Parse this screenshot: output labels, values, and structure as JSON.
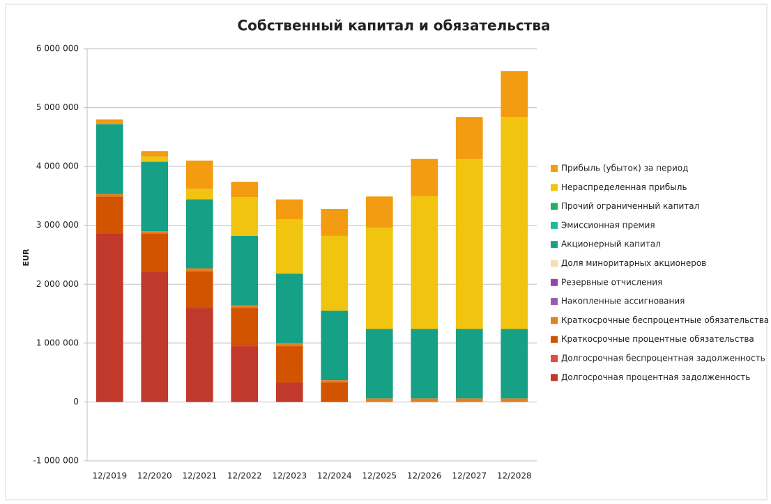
{
  "chart_data": {
    "type": "stacked-bar",
    "title": "Собственный капитал и обязательства",
    "y_label": "EUR",
    "categories": [
      "12/2019",
      "12/2020",
      "12/2021",
      "12/2022",
      "12/2023",
      "12/2024",
      "12/2025",
      "12/2026",
      "12/2027",
      "12/2028"
    ],
    "ylim": [
      -1000000,
      6000000
    ],
    "yticks": [
      {
        "value": -1000000,
        "label": "-1 000 000"
      },
      {
        "value": 0,
        "label": "0"
      },
      {
        "value": 1000000,
        "label": "1 000 000"
      },
      {
        "value": 2000000,
        "label": "2 000 000"
      },
      {
        "value": 3000000,
        "label": "3 000 000"
      },
      {
        "value": 4000000,
        "label": "4 000 000"
      },
      {
        "value": 5000000,
        "label": "5 000 000"
      },
      {
        "value": 6000000,
        "label": "6 000 000"
      }
    ],
    "grid": true,
    "series": [
      {
        "name": "Долгосрочная процентная задолженность",
        "color": "#c0392b",
        "values": [
          2860000,
          2220000,
          1600000,
          950000,
          330000,
          0,
          0,
          0,
          0,
          0
        ]
      },
      {
        "name": "Долгосрочная беспроцентная задолженность",
        "color": "#e74c3c",
        "values": [
          0,
          0,
          0,
          0,
          0,
          0,
          0,
          0,
          0,
          0
        ]
      },
      {
        "name": "Краткосрочные процентные обязательства",
        "color": "#d35400",
        "values": [
          630000,
          640000,
          620000,
          650000,
          620000,
          330000,
          0,
          0,
          0,
          0
        ]
      },
      {
        "name": "Краткосрочные беспроцентные обязательства",
        "color": "#e67e22",
        "values": [
          40000,
          40000,
          50000,
          40000,
          50000,
          40000,
          60000,
          60000,
          60000,
          60000
        ]
      },
      {
        "name": "Накопленные ассигнования",
        "color": "#9b59b6",
        "values": [
          0,
          0,
          0,
          0,
          0,
          0,
          0,
          0,
          0,
          0
        ]
      },
      {
        "name": "Резервные отчисления",
        "color": "#8e44ad",
        "values": [
          0,
          0,
          0,
          0,
          0,
          0,
          0,
          0,
          0,
          0
        ]
      },
      {
        "name": "Доля миноритарных акционеров",
        "color": "#f5deb3",
        "values": [
          0,
          0,
          0,
          0,
          0,
          0,
          0,
          0,
          0,
          0
        ]
      },
      {
        "name": "Акционерный капитал",
        "color": "#16a085",
        "values": [
          1190000,
          1180000,
          1170000,
          1180000,
          1180000,
          1180000,
          1180000,
          1180000,
          1180000,
          1180000
        ]
      },
      {
        "name": "Эмиссионная премия",
        "color": "#1abc9c",
        "values": [
          0,
          0,
          0,
          0,
          0,
          0,
          0,
          0,
          0,
          0
        ]
      },
      {
        "name": "Прочий ограниченный капитал",
        "color": "#27ae60",
        "values": [
          0,
          0,
          0,
          0,
          0,
          0,
          0,
          0,
          0,
          0
        ]
      },
      {
        "name": "Нераспределенная прибыль",
        "color": "#f1c40f",
        "values": [
          0,
          90000,
          180000,
          660000,
          920000,
          1270000,
          1720000,
          2260000,
          2890000,
          3600000
        ]
      },
      {
        "name": "Прибыль (убыток) за период",
        "color": "#f39c12",
        "values": [
          80000,
          90000,
          480000,
          260000,
          340000,
          460000,
          530000,
          630000,
          710000,
          780000
        ]
      }
    ]
  }
}
